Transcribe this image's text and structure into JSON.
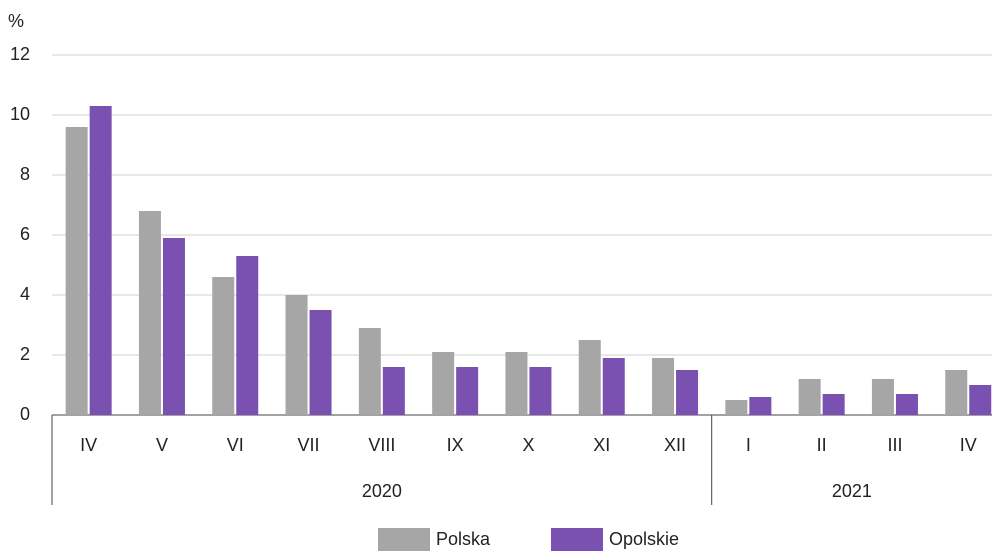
{
  "chart_data": {
    "type": "bar",
    "y_label": "%",
    "categories": [
      "IV",
      "V",
      "VI",
      "VII",
      "VIII",
      "IX",
      "X",
      "XI",
      "XII",
      "I",
      "II",
      "III",
      "IV"
    ],
    "groups": [
      {
        "label": "2020",
        "span": 9
      },
      {
        "label": "2021",
        "span": 4
      }
    ],
    "series": [
      {
        "name": "Polska",
        "color": "#a6a6a6",
        "values": [
          9.6,
          6.8,
          4.6,
          4.0,
          2.9,
          2.1,
          2.1,
          2.5,
          1.9,
          0.5,
          1.2,
          1.2,
          1.5
        ]
      },
      {
        "name": "Opolskie",
        "color": "#7a50b0",
        "values": [
          10.3,
          5.9,
          5.3,
          3.5,
          1.6,
          1.6,
          1.6,
          1.9,
          1.5,
          0.6,
          0.7,
          0.7,
          1.0
        ]
      }
    ],
    "ylim": [
      0,
      12
    ],
    "yticks": [
      0,
      2,
      4,
      6,
      8,
      10,
      12
    ],
    "grid": true,
    "legend": "bottom"
  }
}
